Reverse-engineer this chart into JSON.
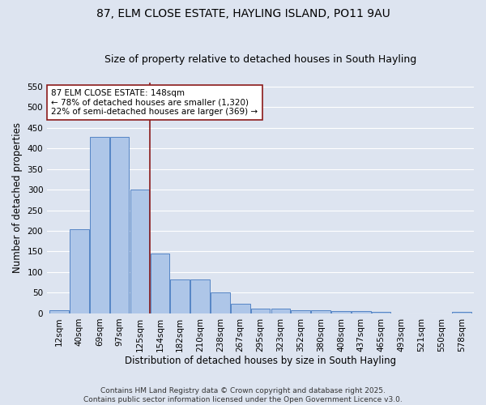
{
  "title": "87, ELM CLOSE ESTATE, HAYLING ISLAND, PO11 9AU",
  "subtitle": "Size of property relative to detached houses in South Hayling",
  "xlabel": "Distribution of detached houses by size in South Hayling",
  "ylabel": "Number of detached properties",
  "categories": [
    "12sqm",
    "40sqm",
    "69sqm",
    "97sqm",
    "125sqm",
    "154sqm",
    "182sqm",
    "210sqm",
    "238sqm",
    "267sqm",
    "295sqm",
    "323sqm",
    "352sqm",
    "380sqm",
    "408sqm",
    "437sqm",
    "465sqm",
    "493sqm",
    "521sqm",
    "550sqm",
    "578sqm"
  ],
  "values": [
    8,
    204,
    428,
    428,
    301,
    146,
    82,
    82,
    50,
    24,
    12,
    12,
    8,
    8,
    5,
    5,
    3,
    0,
    0,
    0,
    4
  ],
  "bar_color": "#aec6e8",
  "bar_edge_color": "#5585c5",
  "vline_x": 4.5,
  "vline_color": "#8b1a1a",
  "annotation_text": "87 ELM CLOSE ESTATE: 148sqm\n← 78% of detached houses are smaller (1,320)\n22% of semi-detached houses are larger (369) →",
  "annotation_box_color": "#ffffff",
  "annotation_box_edge": "#8b1a1a",
  "ylim": [
    0,
    560
  ],
  "yticks": [
    0,
    50,
    100,
    150,
    200,
    250,
    300,
    350,
    400,
    450,
    500,
    550
  ],
  "bg_color": "#dde4f0",
  "grid_color": "#ffffff",
  "footer_text": "Contains HM Land Registry data © Crown copyright and database right 2025.\nContains public sector information licensed under the Open Government Licence v3.0.",
  "title_fontsize": 10,
  "subtitle_fontsize": 9,
  "xlabel_fontsize": 8.5,
  "ylabel_fontsize": 8.5,
  "tick_fontsize": 7.5,
  "footer_fontsize": 6.5,
  "annot_fontsize": 7.5
}
